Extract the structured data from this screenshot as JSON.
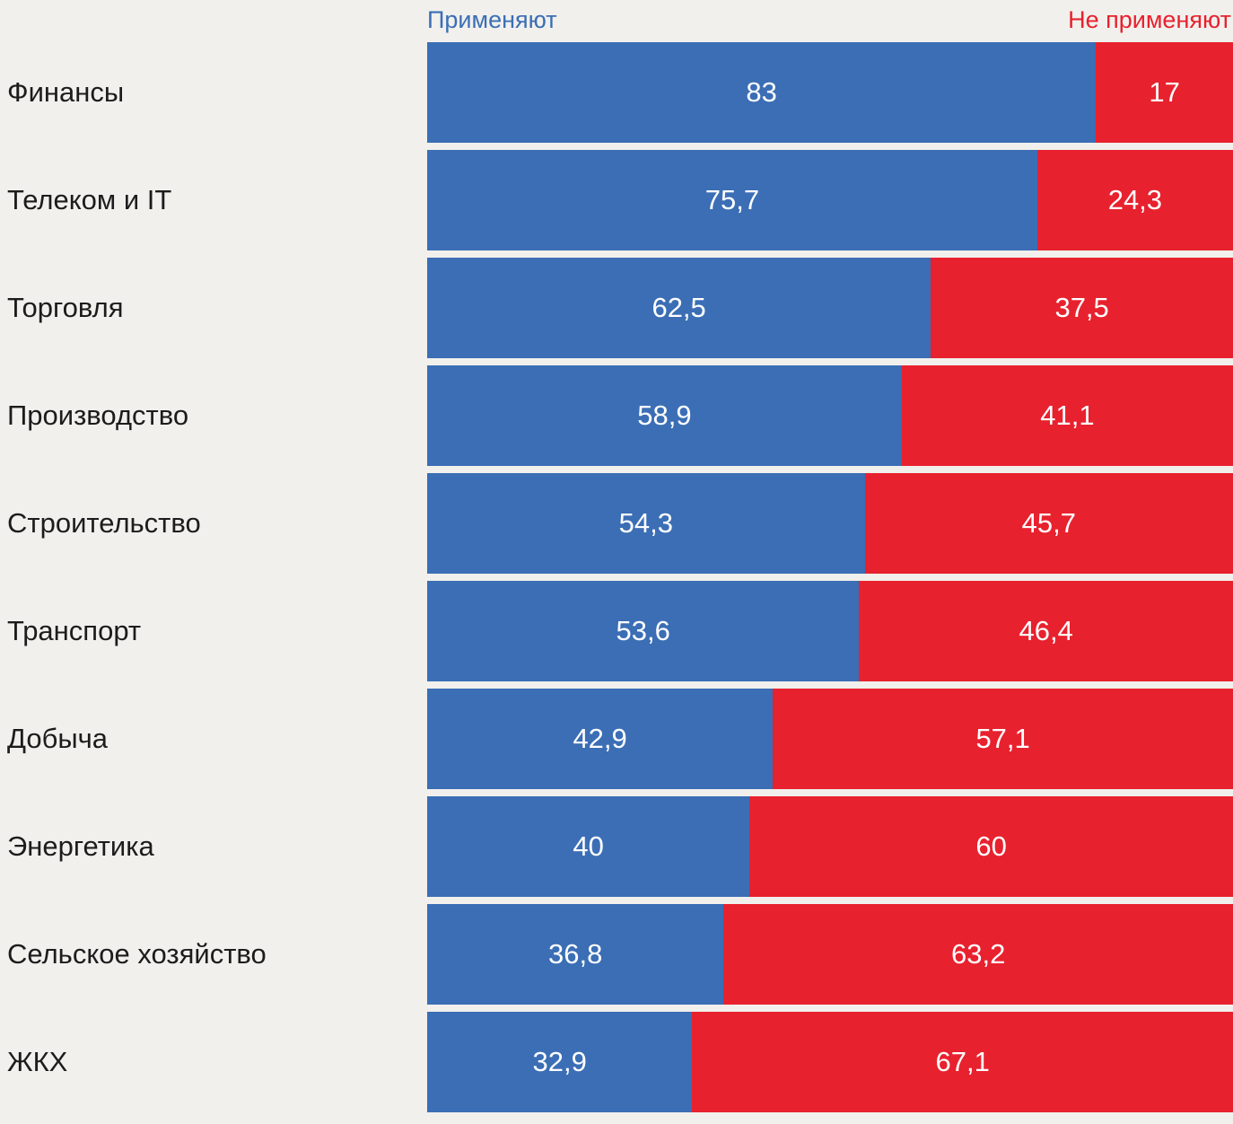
{
  "legend": {
    "apply_label": "Применяют",
    "not_apply_label": "Не применяют"
  },
  "colors": {
    "apply": "#3b6eb5",
    "not_apply": "#e8212e",
    "background": "#f1f0ec",
    "value_text": "#ffffff",
    "category_text": "#1c1c1c"
  },
  "chart_data": {
    "type": "bar",
    "stacked": true,
    "orientation": "horizontal",
    "title": "",
    "xlabel": "",
    "ylabel": "",
    "xlim": [
      0,
      100
    ],
    "legend_position": "top",
    "grid": false,
    "categories": [
      "Финансы",
      "Телеком и IT",
      "Торговля",
      "Производство",
      "Строительство",
      "Транспорт",
      "Добыча",
      "Энергетика",
      "Сельское хозяйство",
      "ЖКХ"
    ],
    "series": [
      {
        "name": "Применяют",
        "color": "#3b6eb5",
        "values": [
          83,
          75.7,
          62.5,
          58.9,
          54.3,
          53.6,
          42.9,
          40,
          36.8,
          32.9
        ],
        "labels": [
          "83",
          "75,7",
          "62,5",
          "58,9",
          "54,3",
          "53,6",
          "42,9",
          "40",
          "36,8",
          "32,9"
        ]
      },
      {
        "name": "Не применяют",
        "color": "#e8212e",
        "values": [
          17,
          24.3,
          37.5,
          41.1,
          45.7,
          46.4,
          57.1,
          60,
          63.2,
          67.1
        ],
        "labels": [
          "17",
          "24,3",
          "37,5",
          "41,1",
          "45,7",
          "46,4",
          "57,1",
          "60",
          "63,2",
          "67,1"
        ]
      }
    ]
  }
}
